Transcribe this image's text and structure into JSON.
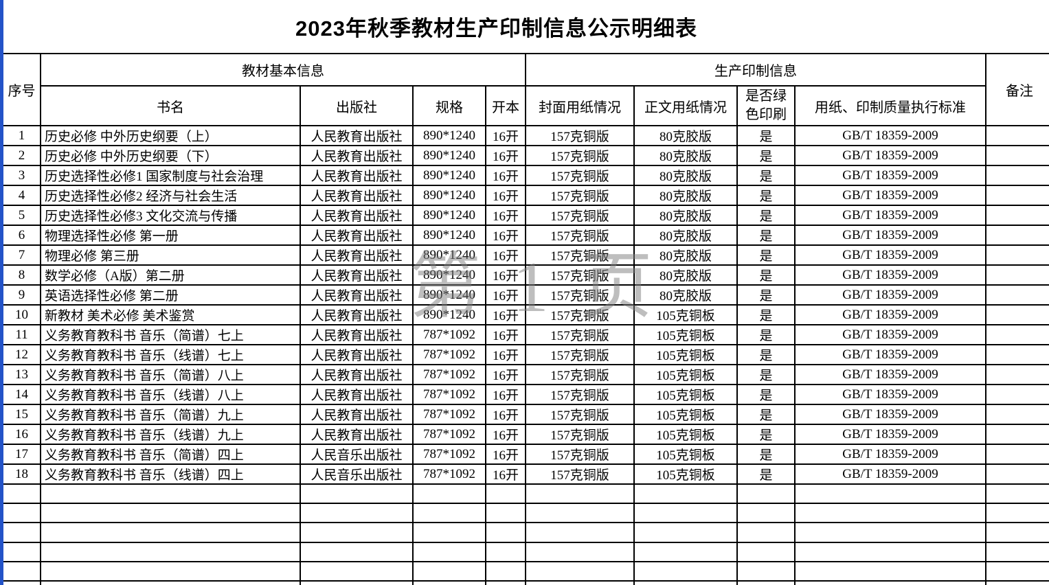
{
  "page": {
    "title": "2023年秋季教材生产印制信息公示明细表",
    "watermark": "第 1 页",
    "colors": {
      "left_edge_blue": "#2353c8",
      "table_border": "#000000",
      "watermark_gray": "#7f7f7f"
    }
  },
  "table": {
    "group_headers": {
      "serial": "序号",
      "basic_info": "教材基本信息",
      "production_info": "生产印制信息",
      "remarks": "备注"
    },
    "column_headers": {
      "book_name": "书名",
      "publisher": "出版社",
      "spec": "规格",
      "format": "开本",
      "cover_paper": "封面用纸情况",
      "body_paper": "正文用纸情况",
      "green_printing": "是否绿色印刷",
      "standard": "用纸、印制质量执行标准"
    },
    "rows": [
      {
        "serial": "1",
        "book_name": "历史必修 中外历史纲要（上）",
        "publisher": "人民教育出版社",
        "spec": "890*1240",
        "format": "16开",
        "cover_paper": "157克铜版",
        "body_paper": "80克胶版",
        "green_printing": "是",
        "standard": "GB/T 18359-2009",
        "remarks": ""
      },
      {
        "serial": "2",
        "book_name": "历史必修 中外历史纲要（下）",
        "publisher": "人民教育出版社",
        "spec": "890*1240",
        "format": "16开",
        "cover_paper": "157克铜版",
        "body_paper": "80克胶版",
        "green_printing": "是",
        "standard": "GB/T 18359-2009",
        "remarks": ""
      },
      {
        "serial": "3",
        "book_name": "历史选择性必修1 国家制度与社会治理",
        "publisher": "人民教育出版社",
        "spec": "890*1240",
        "format": "16开",
        "cover_paper": "157克铜版",
        "body_paper": "80克胶版",
        "green_printing": "是",
        "standard": "GB/T 18359-2009",
        "remarks": ""
      },
      {
        "serial": "4",
        "book_name": "历史选择性必修2 经济与社会生活",
        "publisher": "人民教育出版社",
        "spec": "890*1240",
        "format": "16开",
        "cover_paper": "157克铜版",
        "body_paper": "80克胶版",
        "green_printing": "是",
        "standard": "GB/T 18359-2009",
        "remarks": ""
      },
      {
        "serial": "5",
        "book_name": "历史选择性必修3 文化交流与传播",
        "publisher": "人民教育出版社",
        "spec": "890*1240",
        "format": "16开",
        "cover_paper": "157克铜版",
        "body_paper": "80克胶版",
        "green_printing": "是",
        "standard": "GB/T 18359-2009",
        "remarks": ""
      },
      {
        "serial": "6",
        "book_name": "物理选择性必修 第一册",
        "publisher": "人民教育出版社",
        "spec": "890*1240",
        "format": "16开",
        "cover_paper": "157克铜版",
        "body_paper": "80克胶版",
        "green_printing": "是",
        "standard": "GB/T 18359-2009",
        "remarks": ""
      },
      {
        "serial": "7",
        "book_name": "物理必修 第三册",
        "publisher": "人民教育出版社",
        "spec": "890*1240",
        "format": "16开",
        "cover_paper": "157克铜版",
        "body_paper": "80克胶版",
        "green_printing": "是",
        "standard": "GB/T 18359-2009",
        "remarks": ""
      },
      {
        "serial": "8",
        "book_name": "数学必修（A版）第二册",
        "publisher": "人民教育出版社",
        "spec": "890*1240",
        "format": "16开",
        "cover_paper": "157克铜版",
        "body_paper": "80克胶版",
        "green_printing": "是",
        "standard": "GB/T 18359-2009",
        "remarks": ""
      },
      {
        "serial": "9",
        "book_name": "英语选择性必修 第二册",
        "publisher": "人民教育出版社",
        "spec": "890*1240",
        "format": "16开",
        "cover_paper": "157克铜版",
        "body_paper": "80克胶版",
        "green_printing": "是",
        "standard": "GB/T 18359-2009",
        "remarks": ""
      },
      {
        "serial": "10",
        "book_name": "新教材 美术必修 美术鉴赏",
        "publisher": "人民教育出版社",
        "spec": "890*1240",
        "format": "16开",
        "cover_paper": "157克铜版",
        "body_paper": "105克铜板",
        "green_printing": "是",
        "standard": "GB/T 18359-2009",
        "remarks": ""
      },
      {
        "serial": "11",
        "book_name": "义务教育教科书 音乐（简谱）七上",
        "publisher": "人民教育出版社",
        "spec": "787*1092",
        "format": "16开",
        "cover_paper": "157克铜版",
        "body_paper": "105克铜板",
        "green_printing": "是",
        "standard": "GB/T 18359-2009",
        "remarks": ""
      },
      {
        "serial": "12",
        "book_name": "义务教育教科书 音乐（线谱）七上",
        "publisher": "人民教育出版社",
        "spec": "787*1092",
        "format": "16开",
        "cover_paper": "157克铜版",
        "body_paper": "105克铜板",
        "green_printing": "是",
        "standard": "GB/T 18359-2009",
        "remarks": ""
      },
      {
        "serial": "13",
        "book_name": "义务教育教科书 音乐（简谱）八上",
        "publisher": "人民教育出版社",
        "spec": "787*1092",
        "format": "16开",
        "cover_paper": "157克铜版",
        "body_paper": "105克铜板",
        "green_printing": "是",
        "standard": "GB/T 18359-2009",
        "remarks": ""
      },
      {
        "serial": "14",
        "book_name": "义务教育教科书 音乐（线谱）八上",
        "publisher": "人民教育出版社",
        "spec": "787*1092",
        "format": "16开",
        "cover_paper": "157克铜版",
        "body_paper": "105克铜板",
        "green_printing": "是",
        "standard": "GB/T 18359-2009",
        "remarks": ""
      },
      {
        "serial": "15",
        "book_name": "义务教育教科书 音乐（简谱）九上",
        "publisher": "人民教育出版社",
        "spec": "787*1092",
        "format": "16开",
        "cover_paper": "157克铜版",
        "body_paper": "105克铜板",
        "green_printing": "是",
        "standard": "GB/T 18359-2009",
        "remarks": ""
      },
      {
        "serial": "16",
        "book_name": "义务教育教科书 音乐（线谱）九上",
        "publisher": "人民教育出版社",
        "spec": "787*1092",
        "format": "16开",
        "cover_paper": "157克铜版",
        "body_paper": "105克铜板",
        "green_printing": "是",
        "standard": "GB/T 18359-2009",
        "remarks": ""
      },
      {
        "serial": "17",
        "book_name": "义务教育教科书 音乐（简谱）四上",
        "publisher": "人民音乐出版社",
        "spec": "787*1092",
        "format": "16开",
        "cover_paper": "157克铜版",
        "body_paper": "105克铜板",
        "green_printing": "是",
        "standard": "GB/T 18359-2009",
        "remarks": ""
      },
      {
        "serial": "18",
        "book_name": "义务教育教科书 音乐（线谱）四上",
        "publisher": "人民音乐出版社",
        "spec": "787*1092",
        "format": "16开",
        "cover_paper": "157克铜版",
        "body_paper": "105克铜板",
        "green_printing": "是",
        "standard": "GB/T 18359-2009",
        "remarks": ""
      }
    ],
    "empty_row_count": 6
  }
}
